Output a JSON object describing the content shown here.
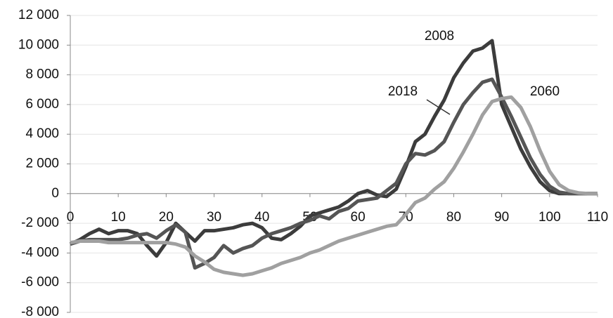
{
  "chart_data": {
    "type": "line",
    "x": [
      0,
      2,
      4,
      6,
      8,
      10,
      12,
      14,
      16,
      18,
      20,
      22,
      24,
      26,
      28,
      30,
      32,
      34,
      36,
      38,
      40,
      42,
      44,
      46,
      48,
      50,
      52,
      54,
      56,
      58,
      60,
      62,
      64,
      66,
      68,
      70,
      72,
      74,
      76,
      78,
      80,
      82,
      84,
      86,
      88,
      90,
      92,
      94,
      96,
      98,
      100,
      102,
      104,
      106,
      108,
      110
    ],
    "series": [
      {
        "name": "2008",
        "color": "#3c3c3c",
        "width": 5,
        "values": [
          -3400,
          -3100,
          -2700,
          -2400,
          -2700,
          -2500,
          -2500,
          -2700,
          -3500,
          -4200,
          -3300,
          -2000,
          -2600,
          -3200,
          -2500,
          -2500,
          -2400,
          -2300,
          -2100,
          -2000,
          -2300,
          -3000,
          -3100,
          -2700,
          -2200,
          -1500,
          -1300,
          -1100,
          -900,
          -500,
          0,
          200,
          -100,
          -200,
          300,
          1800,
          3500,
          4000,
          5200,
          6300,
          7800,
          8800,
          9600,
          9800,
          10300,
          6000,
          4500,
          3000,
          1800,
          800,
          200,
          0,
          0,
          0,
          0,
          0
        ]
      },
      {
        "name": "2018",
        "color": "#555555",
        "width": 5,
        "values": [
          -3400,
          -3200,
          -3100,
          -3100,
          -3100,
          -3100,
          -3000,
          -2800,
          -2700,
          -3000,
          -2500,
          -2100,
          -2600,
          -5000,
          -4700,
          -4300,
          -3500,
          -4000,
          -3700,
          -3500,
          -3000,
          -2700,
          -2500,
          -2300,
          -2000,
          -1800,
          -1500,
          -1700,
          -1200,
          -1000,
          -500,
          -400,
          -300,
          200,
          700,
          2000,
          2700,
          2600,
          2900,
          3500,
          4800,
          6000,
          6800,
          7500,
          7700,
          6500,
          5200,
          3800,
          2400,
          1300,
          500,
          100,
          0,
          0,
          0,
          0
        ]
      },
      {
        "name": "2060",
        "color": "#a0a0a0",
        "width": 5,
        "values": [
          -3300,
          -3200,
          -3200,
          -3200,
          -3300,
          -3300,
          -3300,
          -3300,
          -3300,
          -3300,
          -3300,
          -3400,
          -3600,
          -4200,
          -4600,
          -5100,
          -5300,
          -5400,
          -5500,
          -5400,
          -5200,
          -5000,
          -4700,
          -4500,
          -4300,
          -4000,
          -3800,
          -3500,
          -3200,
          -3000,
          -2800,
          -2600,
          -2400,
          -2200,
          -2100,
          -1400,
          -600,
          -300,
          300,
          800,
          1700,
          2800,
          4000,
          5300,
          6200,
          6400,
          6500,
          5800,
          4500,
          2900,
          1500,
          600,
          200,
          50,
          0,
          0
        ]
      }
    ],
    "xlim": [
      0,
      110
    ],
    "xticks": [
      0,
      10,
      20,
      30,
      40,
      50,
      60,
      70,
      80,
      90,
      100,
      110
    ],
    "ylim": [
      -8000,
      12000
    ],
    "yticks": [
      {
        "value": -8000,
        "label": "-8 000"
      },
      {
        "value": -6000,
        "label": "-6 000"
      },
      {
        "value": -4000,
        "label": "-4 000"
      },
      {
        "value": -2000,
        "label": "-2 000"
      },
      0,
      {
        "value": 2000,
        "label": "2 000"
      },
      {
        "value": 4000,
        "label": "4 000"
      },
      {
        "value": 6000,
        "label": "6 000"
      },
      {
        "value": 8000,
        "label": "8 000"
      },
      {
        "value": 10000,
        "label": "10 000"
      },
      {
        "value": 12000,
        "label": "12 000"
      }
    ],
    "grid": true
  }
}
